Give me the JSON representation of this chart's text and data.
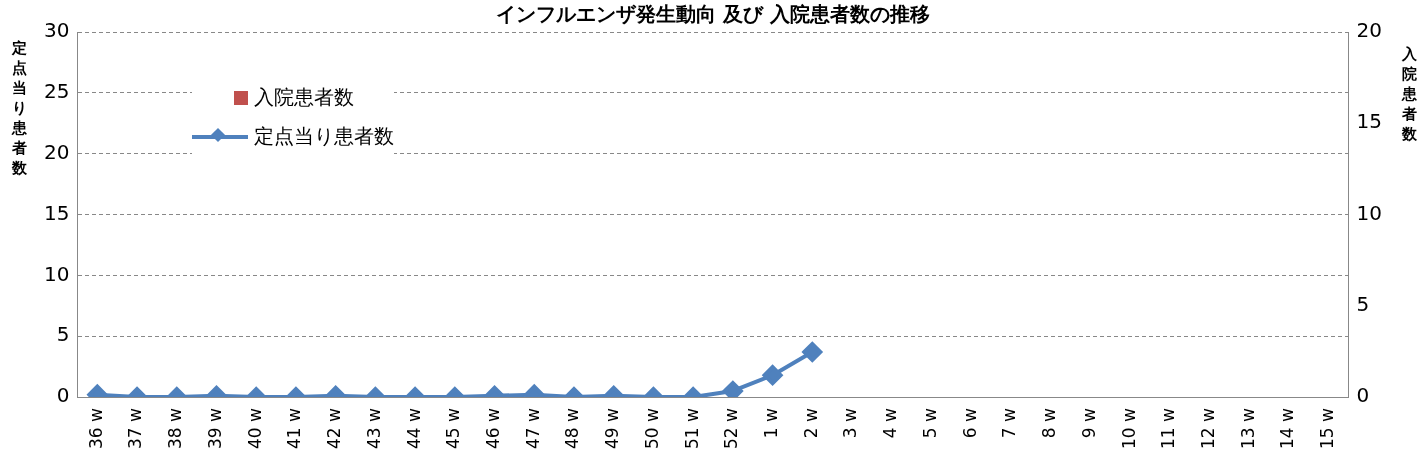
{
  "chart_data": {
    "type": "line",
    "title": "インフルエンザ発生動向 及び 入院患者数の推移",
    "ylabel": "定点当り患者数",
    "y2label": "入院患者数",
    "categories": [
      "36 w",
      "37 w",
      "38 w",
      "39 w",
      "40 w",
      "41 w",
      "42 w",
      "43 w",
      "44 w",
      "45 w",
      "46 w",
      "47 w",
      "48 w",
      "49 w",
      "50 w",
      "51 w",
      "52 w",
      "1 w",
      "2 w",
      "3 w",
      "4 w",
      "5 w",
      "6 w",
      "7 w",
      "8 w",
      "9 w",
      "10 w",
      "11 w",
      "12 w",
      "13 w",
      "14 w",
      "15 w"
    ],
    "series": [
      {
        "name": "入院患者数",
        "type": "bar",
        "color": "#c0504d",
        "values": [
          null,
          null,
          null,
          null,
          null,
          null,
          null,
          null,
          null,
          null,
          null,
          null,
          null,
          null,
          null,
          null,
          null,
          null,
          null,
          null,
          null,
          null,
          null,
          null,
          null,
          null,
          null,
          null,
          null,
          null,
          null,
          null
        ]
      },
      {
        "name": "定点当り患者数",
        "color": "#4f81bd",
        "values": [
          0.2,
          0,
          0,
          0.1,
          0,
          0,
          0.1,
          0,
          0,
          0,
          0.1,
          0.2,
          0,
          0.1,
          0,
          0,
          0.5,
          1.8,
          3.7,
          null,
          null,
          null,
          null,
          null,
          null,
          null,
          null,
          null,
          null,
          null,
          null,
          null
        ]
      }
    ],
    "ylim": [
      0,
      30
    ],
    "yticks": [
      0,
      5,
      10,
      15,
      20,
      25,
      30
    ],
    "y2lim": [
      0,
      20
    ],
    "y2ticks": [
      0,
      5,
      10,
      15,
      20
    ],
    "grid": "y",
    "legend": "top left",
    "marker": "diamond",
    "line_style": "solid"
  }
}
